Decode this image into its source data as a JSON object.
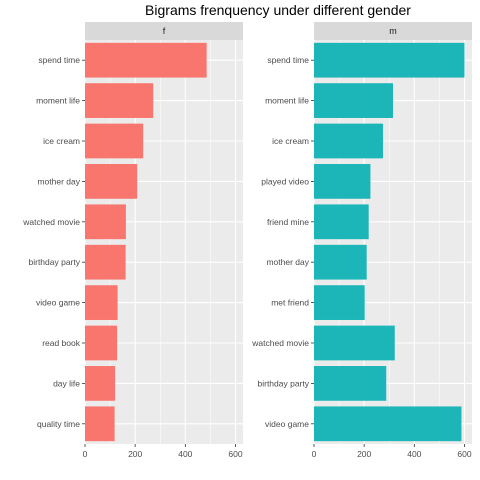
{
  "chart_data": {
    "type": "bar",
    "orientation": "horizontal",
    "title": "Bigrams frenquency under different gender",
    "xlabel": "",
    "ylabel": "",
    "xlim": [
      0,
      630
    ],
    "x_ticks": [
      0,
      200,
      400,
      600
    ],
    "grid": true,
    "legend": "none",
    "panels": [
      {
        "facet": "f",
        "color": "#F8766D",
        "categories": [
          "spend time",
          "moment life",
          "ice cream",
          "mother day",
          "watched movie",
          "birthday party",
          "video game",
          "read book",
          "day life",
          "quality time"
        ],
        "values": [
          485,
          272,
          232,
          208,
          163,
          162,
          130,
          128,
          120,
          118
        ]
      },
      {
        "facet": "m",
        "color": "#1CB5B8",
        "categories": [
          "spend time",
          "moment life",
          "ice cream",
          "played video",
          "friend mine",
          "mother day",
          "met friend",
          "watched movie",
          "birthday party",
          "video game"
        ],
        "values": [
          600,
          315,
          275,
          225,
          218,
          210,
          202,
          322,
          288,
          588
        ]
      }
    ]
  },
  "colors": {
    "panel_background": "#EBEBEB",
    "strip_background": "#D9D9D9",
    "grid_major": "#FFFFFF"
  }
}
